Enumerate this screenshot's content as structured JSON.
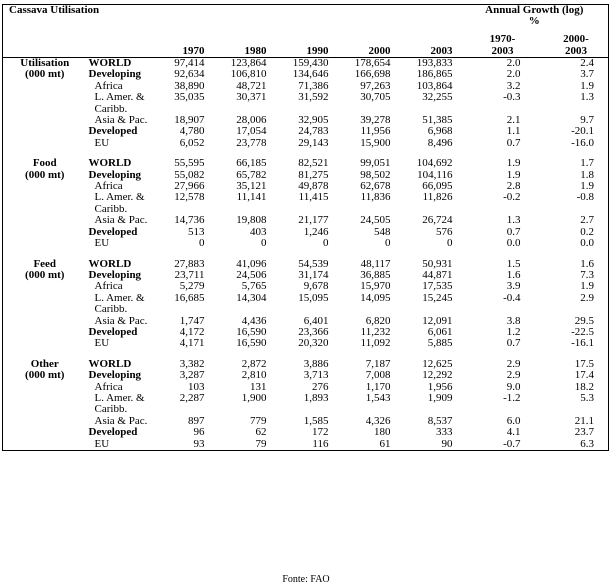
{
  "header": {
    "title": "Cassava Utilisation",
    "growth_title": "Annual Growth (log) %",
    "columns": [
      "1970",
      "1980",
      "1990",
      "2000",
      "2003",
      "1970-2003",
      "2000-2003"
    ]
  },
  "sections": [
    {
      "label": "Utilisation",
      "unit": "(000 mt)",
      "rows": [
        {
          "region": "WORLD",
          "values": [
            "97,414",
            "123,864",
            "159,430",
            "178,654",
            "193,833",
            "2.0",
            "2.4"
          ]
        },
        {
          "region": "Developing",
          "values": [
            "92,634",
            "106,810",
            "134,646",
            "166,698",
            "186,865",
            "2.0",
            "3.7"
          ]
        },
        {
          "region": "Africa",
          "values": [
            "38,890",
            "48,721",
            "71,386",
            "97,263",
            "103,864",
            "3.2",
            "1.9"
          ]
        },
        {
          "region": "L. Amer. & Caribb.",
          "values": [
            "35,035",
            "30,371",
            "31,592",
            "30,705",
            "32,255",
            "-0.3",
            "1.3"
          ]
        },
        {
          "region": "Asia & Pac.",
          "values": [
            "18,907",
            "28,006",
            "32,905",
            "39,278",
            "51,385",
            "2.1",
            "9.7"
          ]
        },
        {
          "region": "Developed",
          "values": [
            "4,780",
            "17,054",
            "24,783",
            "11,956",
            "6,968",
            "1.1",
            "-20.1"
          ]
        },
        {
          "region": "EU",
          "values": [
            "6,052",
            "23,778",
            "29,143",
            "15,900",
            "8,496",
            "0.7",
            "-16.0"
          ]
        }
      ]
    },
    {
      "label": "Food",
      "unit": "(000 mt)",
      "rows": [
        {
          "region": "WORLD",
          "values": [
            "55,595",
            "66,185",
            "82,521",
            "99,051",
            "104,692",
            "1.9",
            "1.7"
          ]
        },
        {
          "region": "Developing",
          "values": [
            "55,082",
            "65,782",
            "81,275",
            "98,502",
            "104,116",
            "1.9",
            "1.8"
          ]
        },
        {
          "region": "Africa",
          "values": [
            "27,966",
            "35,121",
            "49,878",
            "62,678",
            "66,095",
            "2.8",
            "1.9"
          ]
        },
        {
          "region": "L. Amer. & Caribb.",
          "values": [
            "12,578",
            "11,141",
            "11,415",
            "11,836",
            "11,826",
            "-0.2",
            "-0.8"
          ]
        },
        {
          "region": "Asia & Pac.",
          "values": [
            "14,736",
            "19,808",
            "21,177",
            "24,505",
            "26,724",
            "1.3",
            "2.7"
          ]
        },
        {
          "region": "Developed",
          "values": [
            "513",
            "403",
            "1,246",
            "548",
            "576",
            "0.7",
            "0.2"
          ]
        },
        {
          "region": "EU",
          "values": [
            "0",
            "0",
            "0",
            "0",
            "0",
            "0.0",
            "0.0"
          ]
        }
      ]
    },
    {
      "label": "Feed",
      "unit": "(000 mt)",
      "rows": [
        {
          "region": "WORLD",
          "values": [
            "27,883",
            "41,096",
            "54,539",
            "48,117",
            "50,931",
            "1.5",
            "1.6"
          ]
        },
        {
          "region": "Developing",
          "values": [
            "23,711",
            "24,506",
            "31,174",
            "36,885",
            "44,871",
            "1.6",
            "7.3"
          ]
        },
        {
          "region": "Africa",
          "values": [
            "5,279",
            "5,765",
            "9,678",
            "15,970",
            "17,535",
            "3.9",
            "1.9"
          ]
        },
        {
          "region": "L. Amer. & Caribb.",
          "values": [
            "16,685",
            "14,304",
            "15,095",
            "14,095",
            "15,245",
            "-0.4",
            "2.9"
          ]
        },
        {
          "region": "Asia & Pac.",
          "values": [
            "1,747",
            "4,436",
            "6,401",
            "6,820",
            "12,091",
            "3.8",
            "29.5"
          ]
        },
        {
          "region": "Developed",
          "values": [
            "4,172",
            "16,590",
            "23,366",
            "11,232",
            "6,061",
            "1.2",
            "-22.5"
          ]
        },
        {
          "region": "EU",
          "values": [
            "4,171",
            "16,590",
            "20,320",
            "11,092",
            "5,885",
            "0.7",
            "-16.1"
          ]
        }
      ]
    },
    {
      "label": "Other",
      "unit": "(000 mt)",
      "rows": [
        {
          "region": "WORLD",
          "values": [
            "3,382",
            "2,872",
            "3,886",
            "7,187",
            "12,625",
            "2.9",
            "17.5"
          ]
        },
        {
          "region": "Developing",
          "values": [
            "3,287",
            "2,810",
            "3,713",
            "7,008",
            "12,292",
            "2.9",
            "17.4"
          ]
        },
        {
          "region": "Africa",
          "values": [
            "103",
            "131",
            "276",
            "1,170",
            "1,956",
            "9.0",
            "18.2"
          ]
        },
        {
          "region": "L. Amer. & Caribb.",
          "values": [
            "2,287",
            "1,900",
            "1,893",
            "1,543",
            "1,909",
            "-1.2",
            "5.3"
          ]
        },
        {
          "region": "Asia & Pac.",
          "values": [
            "897",
            "779",
            "1,585",
            "4,326",
            "8,537",
            "6.0",
            "21.1"
          ]
        },
        {
          "region": "Developed",
          "values": [
            "96",
            "62",
            "172",
            "180",
            "333",
            "4.1",
            "23.7"
          ]
        },
        {
          "region": "EU",
          "values": [
            "93",
            "79",
            "116",
            "61",
            "90",
            "-0.7",
            "6.3"
          ]
        }
      ]
    }
  ],
  "footer": "Fonte: FAO"
}
